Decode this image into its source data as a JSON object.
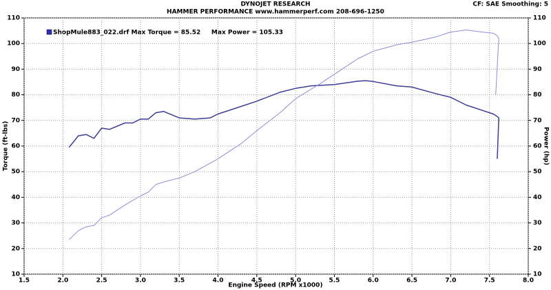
{
  "chart_data": {
    "type": "line",
    "title": "DYNOJET RESEARCH",
    "subtitle": "HAMMER PERFORMANCE www.hammerperf.com 208-696-1250",
    "corner_note": "CF: SAE  Smoothing: 5",
    "legend_text": "ShopMule883_022.drf Max Torque = 85.52     Max Power = 105.33",
    "x_label": "Engine Speed (RPM x1000)",
    "y_label": "Torque (ft-lbs)",
    "y2_label": "Power (hp)",
    "xlim": [
      1.5,
      8.0
    ],
    "xticks": [
      1.5,
      {
        "value": 2,
        "label": "2.0"
      },
      2.5,
      {
        "value": 3,
        "label": "3.0"
      },
      3.5,
      {
        "value": 4,
        "label": "4.0"
      },
      4.5,
      {
        "value": 5,
        "label": "5.0"
      },
      5.5,
      {
        "value": 6,
        "label": "6.0"
      },
      6.5,
      {
        "value": 7,
        "label": "7.0"
      },
      7.5,
      {
        "value": 8,
        "label": "8.0"
      }
    ],
    "ylim": [
      10,
      110
    ],
    "yticks": [
      10,
      20,
      30,
      40,
      50,
      60,
      70,
      80,
      90,
      100,
      110
    ],
    "y2lim": [
      10,
      110
    ],
    "y2ticks": [
      10,
      20,
      30,
      40,
      50,
      60,
      70,
      80,
      90,
      100,
      110
    ],
    "grid": true,
    "series": [
      {
        "color": "#3c3c96",
        "x": [
          2.08,
          2.2,
          2.3,
          2.4,
          2.5,
          2.6,
          2.8,
          2.9,
          3.0,
          3.1,
          3.2,
          3.3,
          3.5,
          3.7,
          3.9,
          4.0,
          4.2,
          4.5,
          4.8,
          5.0,
          5.2,
          5.5,
          5.8,
          5.9,
          6.0,
          6.3,
          6.5,
          6.8,
          7.0,
          7.2,
          7.4,
          7.55,
          7.6,
          7.62,
          7.6
        ],
        "values": [
          59.5,
          64,
          64.5,
          63,
          67,
          66.5,
          69,
          69,
          70.5,
          70.5,
          73,
          73.5,
          71,
          70.5,
          71,
          72.5,
          74.5,
          77.5,
          81,
          82.5,
          83.5,
          84,
          85.3,
          85.5,
          85.2,
          83.5,
          83,
          80.5,
          79,
          76,
          74,
          72.5,
          71.5,
          71,
          55
        ]
      },
      {
        "color": "#8c8cd8",
        "axis": "y2",
        "x": [
          2.08,
          2.2,
          2.3,
          2.4,
          2.5,
          2.6,
          2.8,
          3.0,
          3.1,
          3.2,
          3.3,
          3.5,
          3.7,
          4.0,
          4.3,
          4.5,
          4.8,
          5.0,
          5.3,
          5.5,
          5.8,
          6.0,
          6.3,
          6.5,
          6.8,
          7.0,
          7.2,
          7.4,
          7.55,
          7.6,
          7.62,
          7.58
        ],
        "values": [
          23.5,
          27,
          28.5,
          29,
          32,
          33,
          37,
          40.5,
          42,
          45,
          46,
          47.5,
          50,
          55,
          61,
          66,
          73,
          78.5,
          84,
          88,
          94,
          97,
          99.5,
          100.5,
          102.5,
          104.5,
          105.3,
          104.5,
          104,
          103,
          102,
          80
        ]
      }
    ]
  }
}
